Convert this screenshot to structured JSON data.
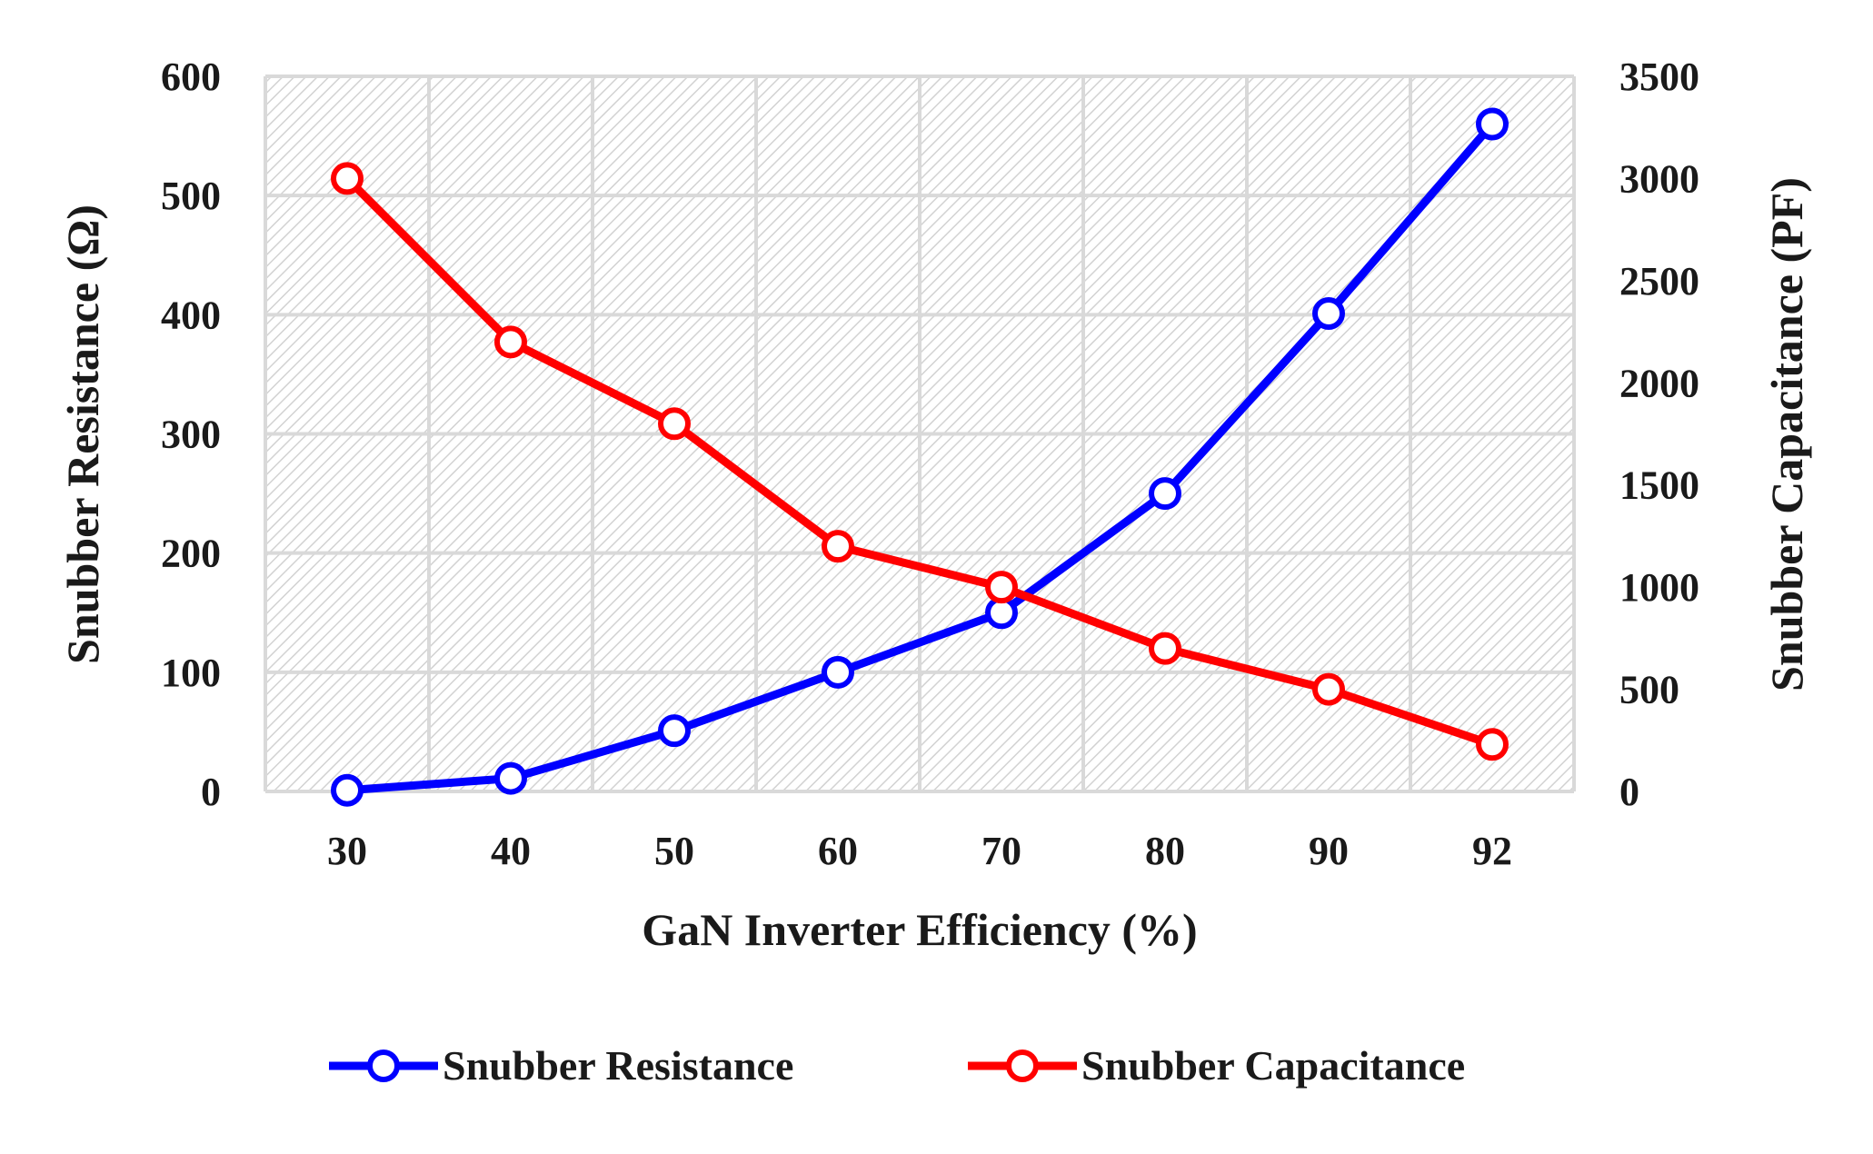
{
  "chart_data": {
    "type": "line",
    "title": "",
    "xlabel": "GaN Inverter Efficiency (%)",
    "ylabel": "Snubber Resistance (Ω)",
    "y2label": "Snubber Capacitance (PF)",
    "categories": [
      "30",
      "40",
      "50",
      "60",
      "70",
      "80",
      "90",
      "92"
    ],
    "ylim": [
      0,
      600
    ],
    "y2lim": [
      0,
      3500
    ],
    "yticks": [
      "0",
      "100",
      "200",
      "300",
      "400",
      "500",
      "600"
    ],
    "y2ticks": [
      "0",
      "500",
      "1000",
      "1500",
      "2000",
      "2500",
      "3000",
      "3500"
    ],
    "grid": true,
    "legend_position": "bottom",
    "series": [
      {
        "name": "Snubber Resistance",
        "axis": "left",
        "color": "#0000ff",
        "values": [
          1,
          11,
          51,
          100,
          150,
          250,
          401,
          560
        ]
      },
      {
        "name": "Snubber Capacitance",
        "axis": "right",
        "color": "#ff0000",
        "values": [
          3000,
          2200,
          1800,
          1200,
          1000,
          700,
          500,
          230
        ]
      }
    ]
  }
}
